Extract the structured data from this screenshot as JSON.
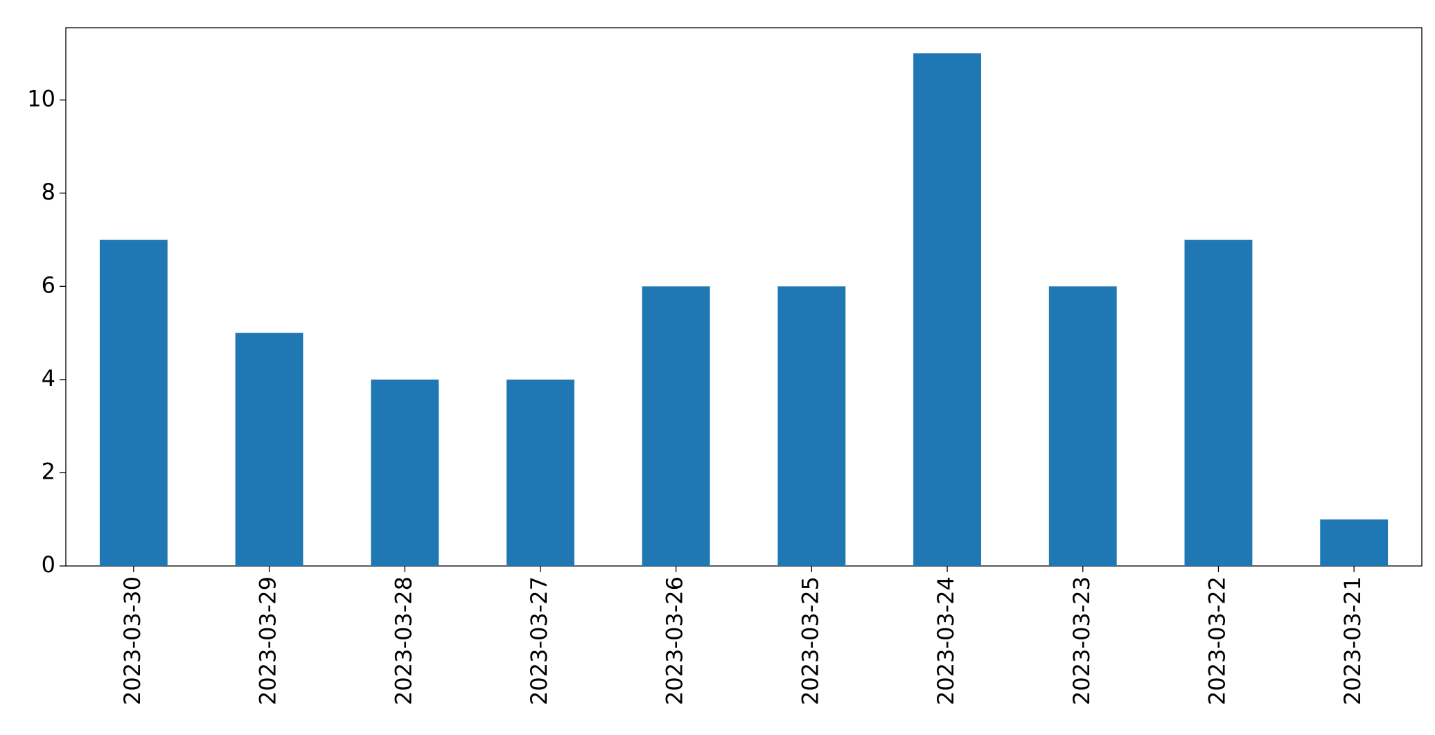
{
  "chart_data": {
    "type": "bar",
    "categories": [
      "2023-03-30",
      "2023-03-29",
      "2023-03-28",
      "2023-03-27",
      "2023-03-26",
      "2023-03-25",
      "2023-03-24",
      "2023-03-23",
      "2023-03-22",
      "2023-03-21"
    ],
    "values": [
      7,
      5,
      4,
      4,
      6,
      6,
      11,
      6,
      7,
      1
    ],
    "color": "#1f77b4",
    "ylim": [
      0,
      11.55
    ],
    "yticks": [
      0,
      2,
      4,
      6,
      8,
      10
    ],
    "grid": false
  }
}
